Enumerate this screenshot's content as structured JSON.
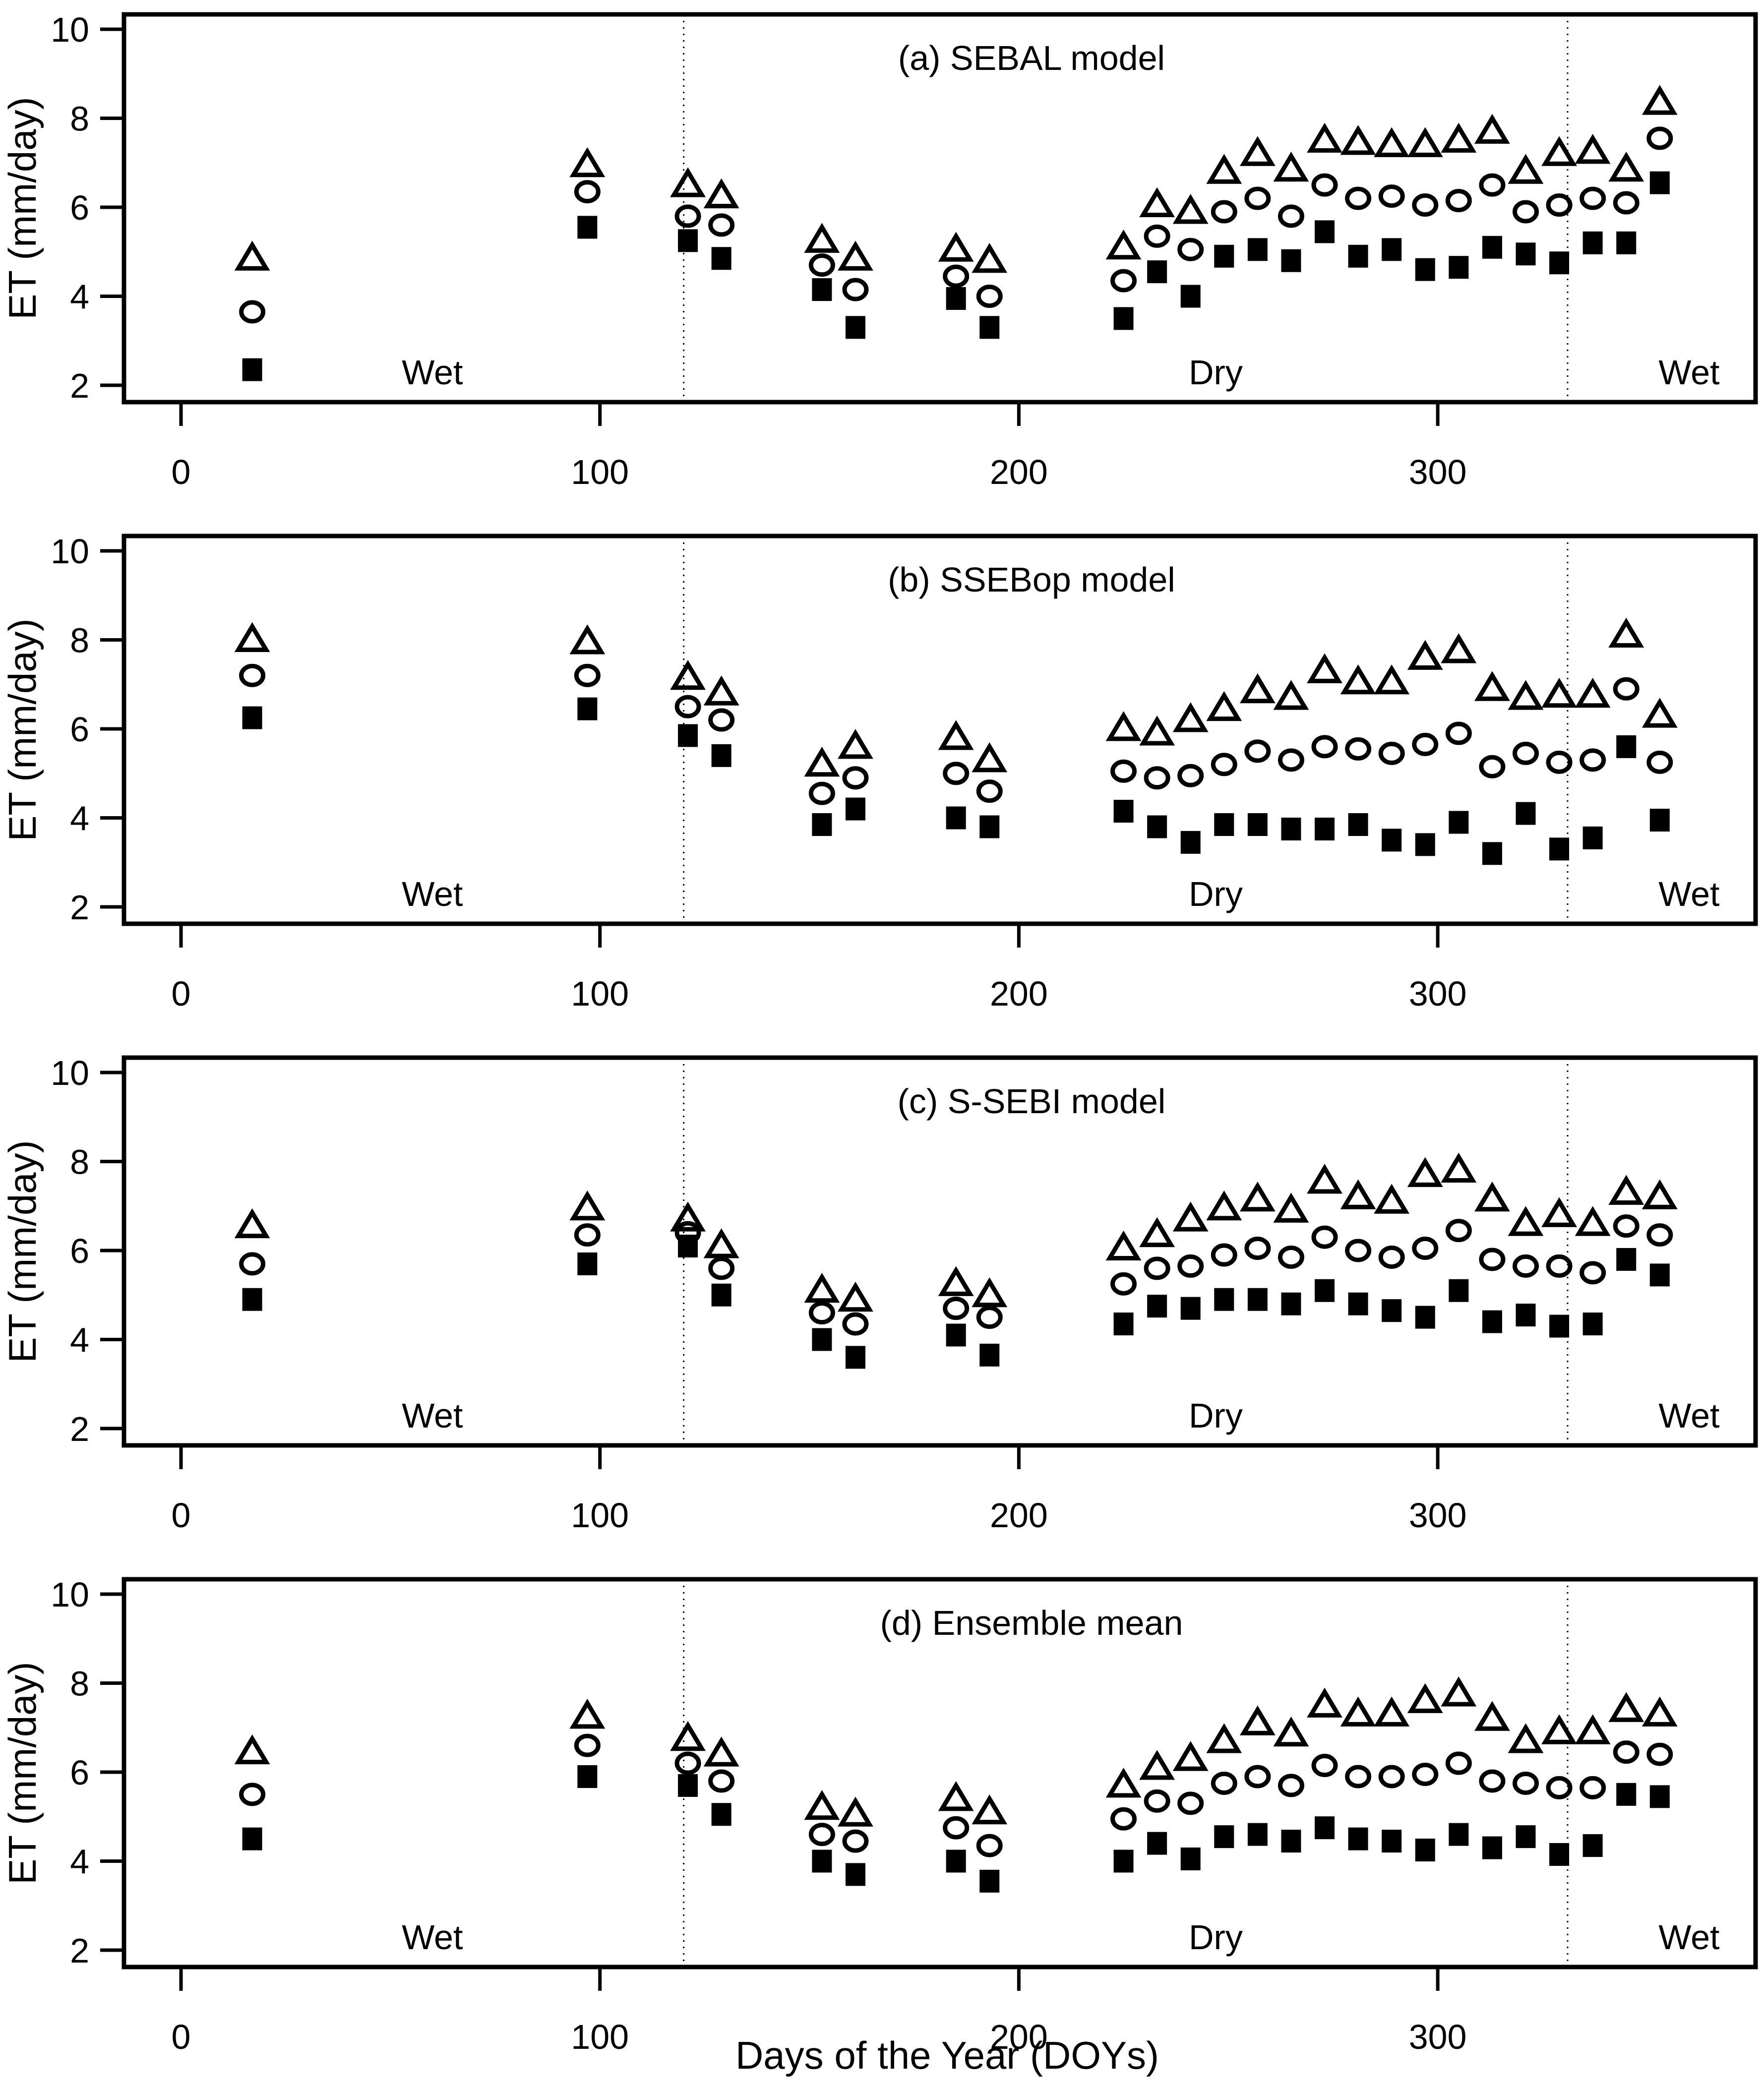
{
  "figure": {
    "background": "#ffffff",
    "foreground": "#000000",
    "ylabel": "ET (mm/day)",
    "xlabel": "Days of the Year (DOYs)"
  },
  "chart_data": {
    "type": "scatter",
    "grid": false,
    "legend_position": "none",
    "xlabel": "Days of the Year (DOYs)",
    "ylabel": "ET (mm/day)",
    "x_ticks": [
      0,
      100,
      200,
      300
    ],
    "y_ticks": [
      2,
      4,
      6,
      8,
      10
    ],
    "xlim": [
      -14,
      378
    ],
    "ylim": [
      1.6,
      10.35
    ],
    "season_dividers_doy": [
      120,
      331
    ],
    "season_labels": [
      {
        "text": "Wet",
        "doy": 60
      },
      {
        "text": "Dry",
        "doy": 247
      },
      {
        "text": "Wet",
        "doy": 360
      }
    ],
    "doys": [
      17,
      97,
      121,
      129,
      153,
      161,
      185,
      193,
      225,
      233,
      241,
      249,
      257,
      265,
      273,
      281,
      289,
      297,
      305,
      313,
      321,
      329,
      337,
      345,
      353
    ],
    "panels": [
      {
        "title": "(a) SEBAL model",
        "series": [
          {
            "name": "triangle",
            "marker": "open-triangle",
            "values": [
              4.85,
              6.95,
              6.5,
              6.25,
              5.25,
              4.85,
              5.05,
              4.8,
              5.1,
              6.05,
              5.9,
              6.8,
              7.2,
              6.85,
              7.5,
              7.45,
              7.4,
              7.4,
              7.5,
              7.7,
              6.8,
              7.2,
              7.25,
              6.85,
              8.35
            ]
          },
          {
            "name": "circle",
            "marker": "open-circle",
            "values": [
              3.65,
              6.35,
              5.8,
              5.6,
              4.7,
              4.15,
              4.45,
              4.0,
              4.35,
              5.35,
              5.05,
              5.9,
              6.2,
              5.8,
              6.5,
              6.2,
              6.25,
              6.05,
              6.15,
              6.5,
              5.9,
              6.05,
              6.2,
              6.1,
              7.55
            ]
          },
          {
            "name": "square",
            "marker": "filled-square",
            "values": [
              2.35,
              5.55,
              5.25,
              4.85,
              4.15,
              3.3,
              3.95,
              3.3,
              3.5,
              4.55,
              4.0,
              4.9,
              5.05,
              4.8,
              5.45,
              4.9,
              5.05,
              4.6,
              4.65,
              5.1,
              4.95,
              4.75,
              5.2,
              5.2,
              6.55
            ]
          }
        ]
      },
      {
        "title": "(b) SSEBop model",
        "series": [
          {
            "name": "triangle",
            "marker": "open-triangle",
            "values": [
              8.0,
              7.95,
              7.15,
              6.8,
              5.2,
              5.6,
              5.8,
              5.3,
              6.0,
              5.9,
              6.2,
              6.45,
              6.85,
              6.7,
              7.3,
              7.05,
              7.05,
              7.6,
              7.75,
              6.9,
              6.7,
              6.75,
              6.75,
              8.1,
              6.3
            ]
          },
          {
            "name": "circle",
            "marker": "open-circle",
            "values": [
              7.2,
              7.2,
              6.5,
              6.2,
              4.55,
              4.9,
              5.0,
              4.6,
              5.05,
              4.9,
              4.95,
              5.2,
              5.5,
              5.3,
              5.6,
              5.55,
              5.45,
              5.65,
              5.9,
              5.15,
              5.45,
              5.25,
              5.3,
              6.9,
              5.25
            ]
          },
          {
            "name": "square",
            "marker": "filled-square",
            "values": [
              6.25,
              6.45,
              5.85,
              5.4,
              3.85,
              4.2,
              4.0,
              3.8,
              4.15,
              3.8,
              3.45,
              3.85,
              3.85,
              3.75,
              3.75,
              3.85,
              3.5,
              3.4,
              3.9,
              3.2,
              4.1,
              3.3,
              3.55,
              5.6,
              3.95
            ]
          }
        ]
      },
      {
        "title": "(c) S-SEBI model",
        "series": [
          {
            "name": "triangle",
            "marker": "open-triangle",
            "values": [
              6.55,
              6.95,
              6.7,
              6.1,
              5.1,
              4.9,
              5.25,
              5.0,
              6.05,
              6.35,
              6.7,
              6.95,
              7.15,
              6.9,
              7.55,
              7.2,
              7.1,
              7.7,
              7.8,
              7.15,
              6.6,
              6.8,
              6.6,
              7.3,
              7.2
            ]
          },
          {
            "name": "circle",
            "marker": "open-circle",
            "values": [
              5.7,
              6.35,
              6.4,
              5.6,
              4.6,
              4.35,
              4.7,
              4.5,
              5.25,
              5.6,
              5.65,
              5.9,
              6.05,
              5.85,
              6.3,
              6.0,
              5.85,
              6.05,
              6.45,
              5.8,
              5.65,
              5.65,
              5.5,
              6.55,
              6.35
            ]
          },
          {
            "name": "square",
            "marker": "filled-square",
            "values": [
              4.9,
              5.7,
              6.1,
              5.0,
              4.0,
              3.6,
              4.1,
              3.65,
              4.35,
              4.75,
              4.7,
              4.9,
              4.9,
              4.8,
              5.1,
              4.8,
              4.65,
              4.5,
              5.1,
              4.4,
              4.55,
              4.3,
              4.35,
              5.8,
              5.45
            ]
          }
        ]
      },
      {
        "title": "(d) Ensemble mean",
        "series": [
          {
            "name": "triangle",
            "marker": "open-triangle",
            "values": [
              6.45,
              7.25,
              6.75,
              6.4,
              5.2,
              5.05,
              5.4,
              5.1,
              5.7,
              6.1,
              6.3,
              6.7,
              7.1,
              6.85,
              7.5,
              7.3,
              7.3,
              7.6,
              7.75,
              7.2,
              6.7,
              6.9,
              6.9,
              7.4,
              7.3
            ]
          },
          {
            "name": "circle",
            "marker": "open-circle",
            "values": [
              5.5,
              6.6,
              6.2,
              5.8,
              4.6,
              4.45,
              4.75,
              4.35,
              4.95,
              5.35,
              5.3,
              5.75,
              5.9,
              5.7,
              6.15,
              5.9,
              5.9,
              5.95,
              6.2,
              5.8,
              5.75,
              5.65,
              5.65,
              6.45,
              6.4
            ]
          },
          {
            "name": "square",
            "marker": "filled-square",
            "values": [
              4.5,
              5.9,
              5.7,
              5.05,
              4.0,
              3.7,
              4.0,
              3.55,
              4.0,
              4.4,
              4.05,
              4.55,
              4.6,
              4.45,
              4.75,
              4.5,
              4.45,
              4.25,
              4.6,
              4.3,
              4.55,
              4.15,
              4.35,
              5.5,
              5.45
            ]
          }
        ]
      }
    ]
  }
}
